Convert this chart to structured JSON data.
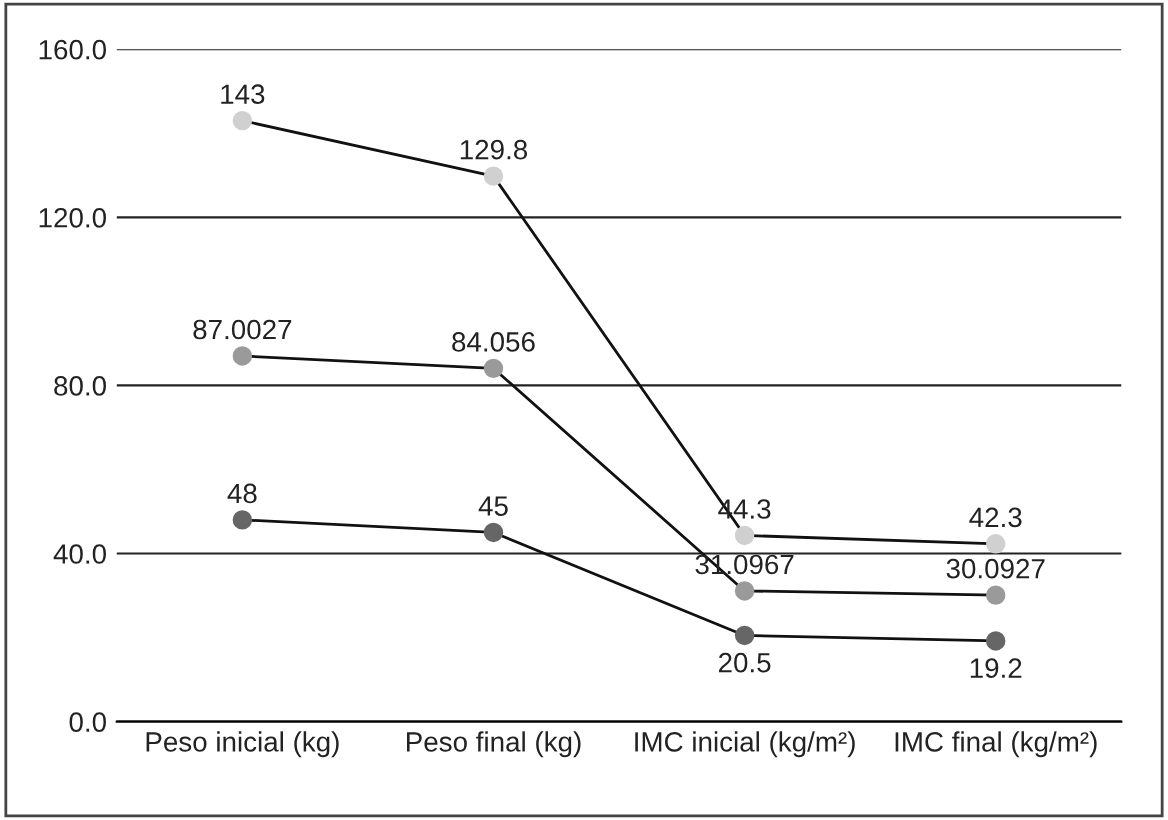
{
  "chart_data": {
    "type": "line",
    "categories": [
      "Peso inicial (kg)",
      "Peso final (kg)",
      "IMC inicial (kg/m²)",
      "IMC final (kg/m²)"
    ],
    "series": [
      {
        "color": "#d0d0d0",
        "values": [
          143,
          129.8,
          44.3,
          42.3
        ]
      },
      {
        "color": "#9a9a9a",
        "values": [
          87.0027,
          84.056,
          31.0967,
          30.0927
        ]
      },
      {
        "color": "#666666",
        "values": [
          48,
          45,
          20.5,
          19.2
        ]
      }
    ],
    "ylim": [
      0,
      160
    ],
    "yticks": [
      {
        "value": 0,
        "label": "0.0"
      },
      {
        "value": 40,
        "label": "40.0"
      },
      {
        "value": 80,
        "label": "80.0"
      },
      {
        "value": 120,
        "label": "120.0"
      },
      {
        "value": 160,
        "label": "160.0"
      }
    ],
    "grid": "y",
    "marker": "circle",
    "line_style": "solid",
    "data_labels": true,
    "legend": false
  }
}
